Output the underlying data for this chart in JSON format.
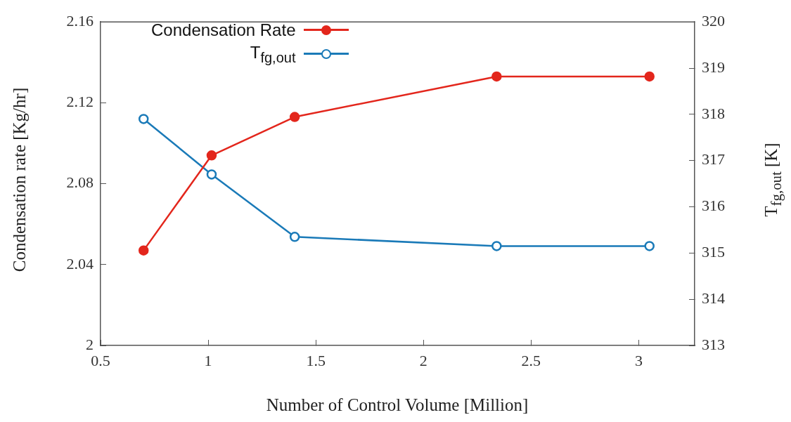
{
  "chart_data": {
    "type": "line",
    "xlabel": "Number of Control Volume [Million]",
    "ylabel": "Condensation rate [Kg/hr]",
    "y2label": "T$_{fg,out}$ [K]",
    "x": [
      0.7,
      1.016,
      1.402,
      2.34,
      3.05
    ],
    "series": [
      {
        "name": "Condensation Rate",
        "color": "#e3261c",
        "values": [
          2.047,
          2.094,
          2.113,
          2.133,
          2.133
        ]
      },
      {
        "name": "T$_{fg,out}$",
        "color": "#1a7ab8",
        "axis": "y2",
        "values": [
          317.9,
          316.7,
          315.35,
          315.15,
          315.15
        ]
      }
    ],
    "xlim": [
      0.5,
      3.26
    ],
    "xticks": [
      0.5,
      1,
      1.5,
      2,
      2.5,
      3
    ],
    "ylim": [
      2,
      2.16
    ],
    "yticks": [
      2,
      2.04,
      2.08,
      2.12,
      2.16
    ],
    "y2lim": [
      313,
      320
    ],
    "y2ticks": [
      313,
      314,
      315,
      316,
      317,
      318,
      319,
      320
    ],
    "grid": false,
    "legend": "top left",
    "marker": "circle",
    "line_style": "solid"
  }
}
